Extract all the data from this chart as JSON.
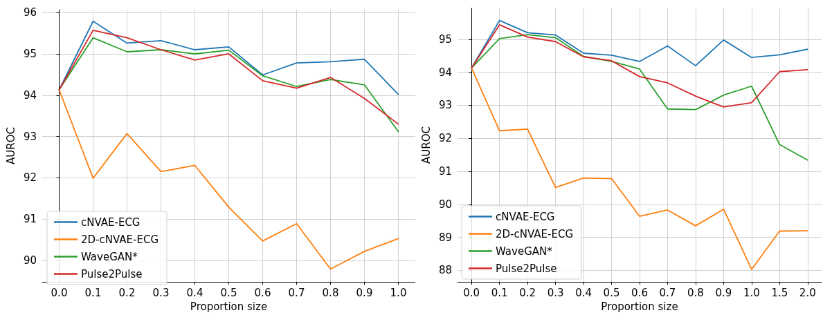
{
  "chart_data": [
    {
      "type": "line",
      "xlabel": "Proportion size",
      "ylabel": "AUROC",
      "categories": [
        "0.0",
        "0.1",
        "0.2",
        "0.3",
        "0.4",
        "0.5",
        "0.6",
        "0.7",
        "0.8",
        "0.9",
        "1.0"
      ],
      "ylim": [
        89.48,
        96.07
      ],
      "yticks": [
        90,
        91,
        92,
        93,
        94,
        95,
        96
      ],
      "grid": true,
      "legend": "bottom left",
      "series": [
        {
          "name": "cNVAE-ECG",
          "color": "#1f77b4",
          "values": [
            94.13,
            95.79,
            95.26,
            95.32,
            95.1,
            95.17,
            94.49,
            94.78,
            94.81,
            94.87,
            94.02
          ]
        },
        {
          "name": "2D-cNVAE-ECG",
          "color": "#ff7f0e",
          "values": [
            94.13,
            91.99,
            93.07,
            92.15,
            92.3,
            91.29,
            90.47,
            90.89,
            89.79,
            90.22,
            90.53
          ]
        },
        {
          "name": "WaveGAN*",
          "color": "#2ca02c",
          "values": [
            94.13,
            95.39,
            95.05,
            95.1,
            95.0,
            95.09,
            94.47,
            94.21,
            94.38,
            94.25,
            93.12
          ]
        },
        {
          "name": "Pulse2Pulse",
          "color": "#d62728",
          "values": [
            94.13,
            95.57,
            95.39,
            95.1,
            94.85,
            95.0,
            94.35,
            94.17,
            94.43,
            93.92,
            93.3
          ]
        }
      ]
    },
    {
      "type": "line",
      "xlabel": "Proportion size",
      "ylabel": "AUROC",
      "categories": [
        "0.0",
        "0.1",
        "0.2",
        "0.3",
        "0.4",
        "0.5",
        "0.6",
        "0.7",
        "0.8",
        "0.9",
        "1.0",
        "1.5",
        "2.0"
      ],
      "ylim": [
        87.65,
        95.94
      ],
      "yticks": [
        88,
        89,
        90,
        91,
        92,
        93,
        94,
        95
      ],
      "grid": true,
      "legend": "bottom left",
      "series": [
        {
          "name": "cNVAE-ECG",
          "color": "#1f77b4",
          "values": [
            94.13,
            95.57,
            95.2,
            95.13,
            94.58,
            94.52,
            94.33,
            94.8,
            94.2,
            94.98,
            94.45,
            94.53,
            94.7
          ]
        },
        {
          "name": "2D-cNVAE-ECG",
          "color": "#ff7f0e",
          "values": [
            94.13,
            92.23,
            92.28,
            90.51,
            90.8,
            90.78,
            89.64,
            89.83,
            89.35,
            89.85,
            88.03,
            89.19,
            89.2
          ]
        },
        {
          "name": "WaveGAN*",
          "color": "#2ca02c",
          "values": [
            94.13,
            95.02,
            95.14,
            95.05,
            94.48,
            94.33,
            94.1,
            92.89,
            92.87,
            93.31,
            93.58,
            91.81,
            91.34
          ]
        },
        {
          "name": "Pulse2Pulse",
          "color": "#d62728",
          "values": [
            94.13,
            95.44,
            95.07,
            94.93,
            94.47,
            94.35,
            93.87,
            93.68,
            93.28,
            92.95,
            93.08,
            94.02,
            94.08
          ]
        }
      ]
    }
  ]
}
